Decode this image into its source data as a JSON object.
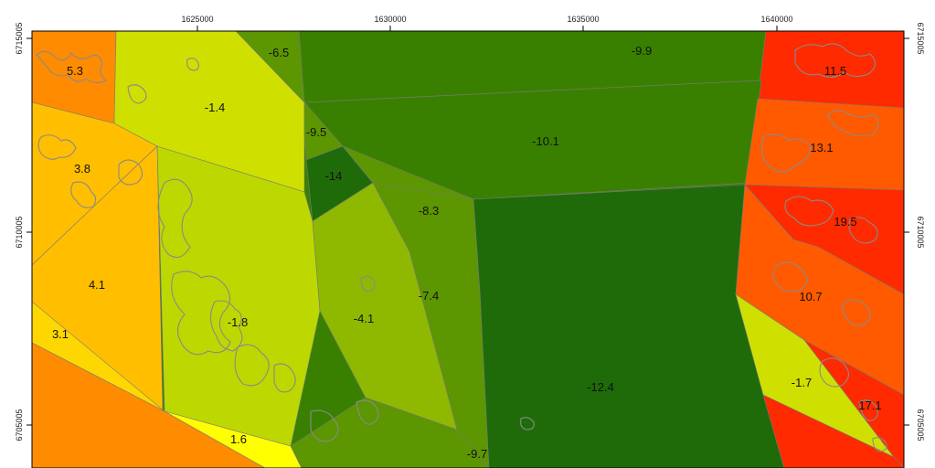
{
  "map": {
    "x_ticks": [
      "1625000",
      "1630000",
      "1635000",
      "1640000"
    ],
    "y_ticks": [
      "6715005",
      "6710005",
      "6705005"
    ],
    "zone_labels": [
      "5.3",
      "-1.4",
      "-6.5",
      "-9.9",
      "11.5",
      "3.8",
      "-9.5",
      "-10.1",
      "13.1",
      "-14",
      "-8.3",
      "19.5",
      "4.1",
      "-7.4",
      "10.7",
      "-4.1",
      "-1.8",
      "3.1",
      "-12.4",
      "-1.7",
      "17.1",
      "1.6",
      "-9.7"
    ],
    "colors": {
      "dark_green": "#1f6b0a",
      "green": "#3a8000",
      "mid_green": "#5c9600",
      "olive": "#8fb800",
      "yellow_green": "#bcd800",
      "lime": "#cfe000",
      "yellow": "#ffff00",
      "gold": "#ffd700",
      "amber": "#ffbf00",
      "orange": "#ff8c00",
      "orange_red": "#ff5a00",
      "red": "#ff2a00"
    }
  }
}
